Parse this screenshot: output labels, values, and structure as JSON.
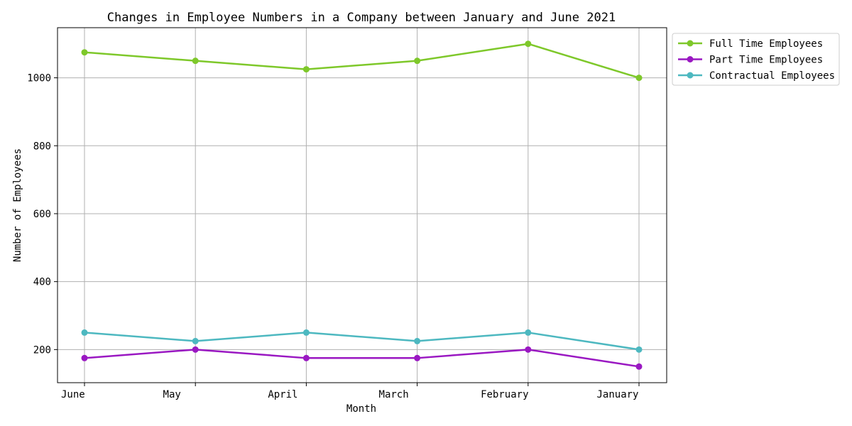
{
  "chart_data": {
    "type": "line",
    "title": "Changes in Employee Numbers in a Company between January and June 2021",
    "xlabel": "Month",
    "ylabel": "Number of Employees",
    "categories": [
      "June",
      "May",
      "April",
      "March",
      "February",
      "January"
    ],
    "series": [
      {
        "name": "Full Time Employees",
        "color": "#7ec82a",
        "values": [
          1075,
          1050,
          1025,
          1050,
          1100,
          1000
        ]
      },
      {
        "name": "Part Time Employees",
        "color": "#9a18c2",
        "values": [
          175,
          200,
          175,
          175,
          200,
          150
        ]
      },
      {
        "name": "Contractual Employees",
        "color": "#4db8c0",
        "values": [
          250,
          225,
          250,
          225,
          250,
          200
        ]
      }
    ],
    "ylim": [
      102.5,
      1147.5
    ],
    "yticks": [
      200,
      400,
      600,
      800,
      1000
    ],
    "grid": true,
    "legend_position": "outside-top-right"
  }
}
